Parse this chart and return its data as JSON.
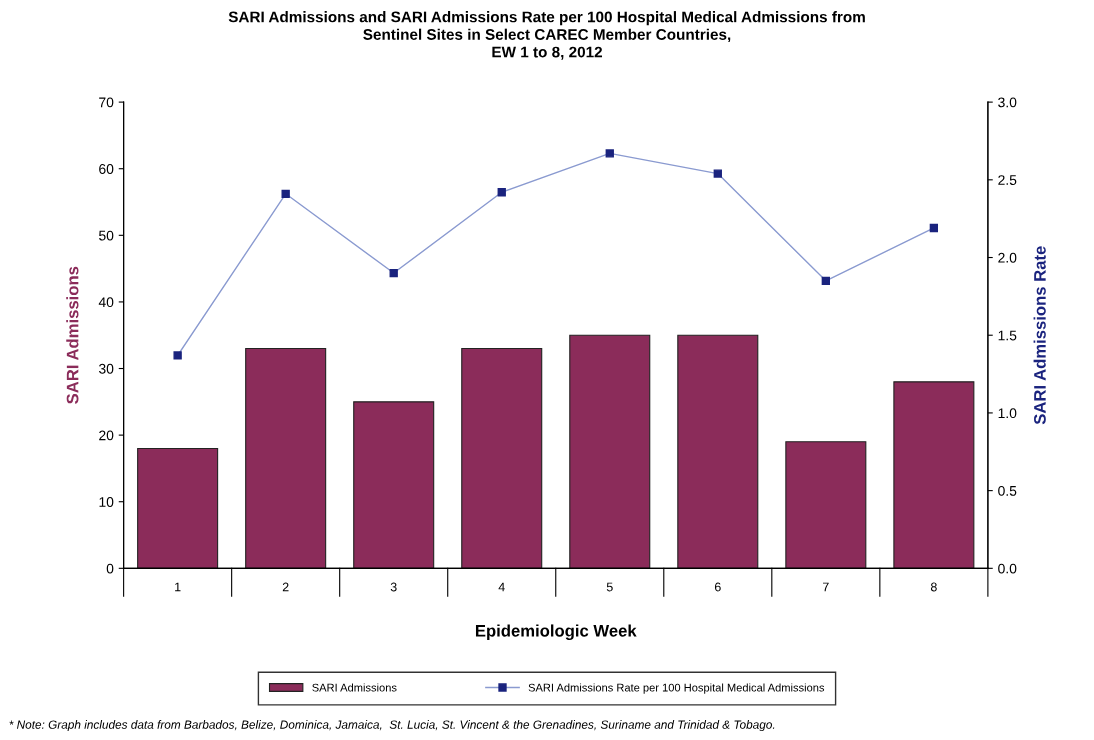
{
  "chart_data": {
    "type": "bar",
    "title": "SARI Admissions and SARI Admissions Rate per 100 Hospital Medical Admissions from\nSentinel Sites in Select CAREC Member Countries,\nEW 1 to 8, 2012",
    "xlabel": "Epidemiologic Week",
    "ylabel": "SARI Admissions",
    "y2label": "SARI Admissions Rate",
    "categories": [
      "1",
      "2",
      "3",
      "4",
      "5",
      "6",
      "7",
      "8"
    ],
    "series": [
      {
        "name": "SARI Admissions",
        "color": "#8b2c5a",
        "values": [
          18,
          33,
          25,
          33,
          35,
          35,
          19,
          28
        ]
      },
      {
        "name": "SARI Admissions Rate per 100 Hospital Medical Admissions",
        "type": "line",
        "axis": "y2",
        "color": "#1a237e",
        "marker": "square",
        "values": [
          1.37,
          2.41,
          1.9,
          2.42,
          2.67,
          2.54,
          1.85,
          2.19
        ]
      }
    ],
    "ylim": [
      0,
      70
    ],
    "yticks": [
      0,
      10,
      20,
      30,
      40,
      50,
      60,
      70
    ],
    "y2lim": [
      0,
      3.0
    ],
    "y2ticks": [
      {
        "value": 0,
        "label": "0.0"
      },
      {
        "value": 0.5,
        "label": "0.5"
      },
      {
        "value": 1.0,
        "label": "1.0"
      },
      {
        "value": 1.5,
        "label": "1.5"
      },
      {
        "value": 2.0,
        "label": "2.0"
      },
      {
        "value": 2.5,
        "label": "2.5"
      },
      {
        "value": 3.0,
        "label": "3.0"
      }
    ],
    "grid": false,
    "legend": "bottom",
    "annotations": [
      "* Note: Graph includes data from Barbados, Belize, Dominica, Jamaica,  St. Lucia, St. Vincent & the Grenadines, Suriname and Trinidad & Tobago."
    ]
  }
}
